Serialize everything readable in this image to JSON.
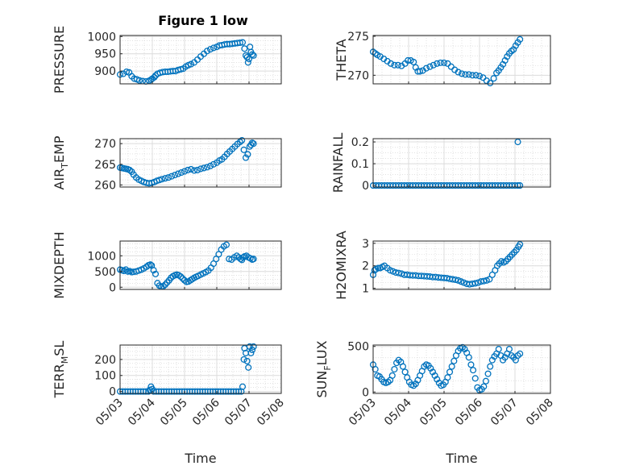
{
  "figure_title": "Figure 1 low",
  "colors": {
    "marker": "#0072BD",
    "axis": "#262626",
    "grid": "#dcdcdc",
    "minor_grid": "#cfcfcf"
  },
  "chart_data": [
    {
      "type": "scatter",
      "ylabel": "PRESSURE",
      "ylabel_parts": [
        "PRESSURE"
      ],
      "title": "Figure 1 low",
      "xlim": [
        0,
        5
      ],
      "ylim": [
        863,
        1003
      ],
      "yticks": [
        900,
        950,
        1000
      ],
      "ytick_labels": [
        "900",
        "950",
        "1000"
      ],
      "grid": true,
      "minor_grid": true,
      "x": [
        0.0,
        0.1,
        0.2,
        0.28,
        0.36,
        0.44,
        0.52,
        0.6,
        0.7,
        0.8,
        0.9,
        0.96,
        1.0,
        1.06,
        1.1,
        1.16,
        1.24,
        1.32,
        1.4,
        1.48,
        1.56,
        1.64,
        1.72,
        1.8,
        1.88,
        1.96,
        2.04,
        2.12,
        2.2,
        2.3,
        2.4,
        2.5,
        2.6,
        2.7,
        2.8,
        2.9,
        3.0,
        3.08,
        3.16,
        3.24,
        3.32,
        3.4,
        3.48,
        3.56,
        3.64,
        3.72,
        3.8,
        3.86,
        3.9,
        3.94,
        3.97,
        4.0,
        4.03,
        4.06,
        4.1,
        4.14
      ],
      "y": [
        890,
        892,
        898,
        896,
        885,
        878,
        876,
        873,
        871,
        870,
        872,
        875,
        878,
        882,
        887,
        892,
        895,
        897,
        898,
        898,
        899,
        900,
        900,
        903,
        905,
        907,
        913,
        917,
        920,
        925,
        933,
        942,
        950,
        958,
        963,
        967,
        970,
        974,
        975,
        977,
        978,
        978,
        979,
        980,
        981,
        982,
        983,
        965,
        945,
        940,
        925,
        935,
        970,
        955,
        948,
        945
      ]
    },
    {
      "type": "scatter",
      "ylabel": "THETA",
      "ylabel_parts": [
        "THETA"
      ],
      "xlim": [
        0,
        5
      ],
      "ylim": [
        268.9,
        275.1
      ],
      "yticks": [
        270,
        275
      ],
      "ytick_labels": [
        "270",
        "275"
      ],
      "grid": true,
      "minor_grid": true,
      "x": [
        0.0,
        0.06,
        0.12,
        0.2,
        0.3,
        0.4,
        0.5,
        0.6,
        0.7,
        0.8,
        0.9,
        0.98,
        1.06,
        1.14,
        1.2,
        1.26,
        1.32,
        1.4,
        1.5,
        1.6,
        1.7,
        1.8,
        1.9,
        2.0,
        2.1,
        2.2,
        2.3,
        2.4,
        2.5,
        2.6,
        2.7,
        2.8,
        2.9,
        3.0,
        3.1,
        3.2,
        3.3,
        3.4,
        3.48,
        3.54,
        3.6,
        3.66,
        3.72,
        3.78,
        3.84,
        3.9,
        3.96,
        4.02,
        4.08,
        4.14
      ],
      "y": [
        273.0,
        272.8,
        272.6,
        272.4,
        272.1,
        271.8,
        271.5,
        271.3,
        271.3,
        271.2,
        271.5,
        271.9,
        271.9,
        271.7,
        271.0,
        270.5,
        270.5,
        270.6,
        270.9,
        271.1,
        271.3,
        271.5,
        271.6,
        271.6,
        271.5,
        271.1,
        270.7,
        270.4,
        270.2,
        270.1,
        270.1,
        270.0,
        270.0,
        269.9,
        269.7,
        269.3,
        269.0,
        269.6,
        270.3,
        270.6,
        271.0,
        271.4,
        271.9,
        272.4,
        272.8,
        273.1,
        273.3,
        273.8,
        274.2,
        274.6
      ]
    },
    {
      "type": "scatter",
      "ylabel": "AIR_TEMP",
      "ylabel_parts": [
        "AIR",
        "T",
        "EMP"
      ],
      "xlim": [
        0,
        5
      ],
      "ylim": [
        259.5,
        271.2
      ],
      "yticks": [
        260,
        265,
        270
      ],
      "ytick_labels": [
        "260",
        "265",
        "270"
      ],
      "grid": true,
      "minor_grid": true,
      "x": [
        0.0,
        0.06,
        0.12,
        0.18,
        0.24,
        0.3,
        0.36,
        0.42,
        0.5,
        0.58,
        0.66,
        0.74,
        0.82,
        0.9,
        0.98,
        1.06,
        1.14,
        1.22,
        1.3,
        1.4,
        1.5,
        1.6,
        1.7,
        1.8,
        1.9,
        2.0,
        2.1,
        2.2,
        2.3,
        2.4,
        2.5,
        2.6,
        2.7,
        2.8,
        2.9,
        3.0,
        3.08,
        3.16,
        3.24,
        3.32,
        3.4,
        3.48,
        3.56,
        3.64,
        3.72,
        3.78,
        3.84,
        3.9,
        3.96,
        4.02,
        4.06,
        4.1,
        4.14
      ],
      "y": [
        264.2,
        264.1,
        264.0,
        263.9,
        263.8,
        263.6,
        263.2,
        262.5,
        261.8,
        261.3,
        261.0,
        260.7,
        260.5,
        260.4,
        260.5,
        260.7,
        261.0,
        261.2,
        261.4,
        261.6,
        261.8,
        262.1,
        262.4,
        262.7,
        263.0,
        263.3,
        263.6,
        263.8,
        263.5,
        263.6,
        263.9,
        264.1,
        264.3,
        264.6,
        265.0,
        265.4,
        265.9,
        266.2,
        266.8,
        267.5,
        268.1,
        268.7,
        269.3,
        269.9,
        270.4,
        270.8,
        268.5,
        266.6,
        267.4,
        269.3,
        269.7,
        270.2,
        270.0
      ]
    },
    {
      "type": "scatter",
      "ylabel": "RAINFALL",
      "ylabel_parts": [
        "RAINFALL"
      ],
      "xlim": [
        0,
        5
      ],
      "ylim": [
        -0.007,
        0.215
      ],
      "yticks": [
        0,
        0.1,
        0.2
      ],
      "ytick_labels": [
        "0",
        "0.1",
        "0.2"
      ],
      "grid": true,
      "minor_grid": true,
      "x": [
        0.0,
        0.08,
        0.16,
        0.24,
        0.32,
        0.4,
        0.48,
        0.56,
        0.64,
        0.72,
        0.8,
        0.88,
        0.96,
        1.04,
        1.12,
        1.2,
        1.28,
        1.36,
        1.44,
        1.52,
        1.6,
        1.68,
        1.76,
        1.84,
        1.92,
        2.0,
        2.08,
        2.16,
        2.24,
        2.32,
        2.4,
        2.48,
        2.56,
        2.64,
        2.72,
        2.8,
        2.88,
        2.96,
        3.04,
        3.12,
        3.2,
        3.28,
        3.36,
        3.44,
        3.52,
        3.6,
        3.68,
        3.76,
        3.84,
        3.92,
        4.0,
        4.08,
        4.14,
        4.08
      ],
      "y": [
        0,
        0,
        0,
        0,
        0,
        0,
        0,
        0,
        0,
        0,
        0,
        0,
        0,
        0,
        0,
        0,
        0,
        0,
        0,
        0,
        0,
        0,
        0,
        0,
        0,
        0,
        0,
        0,
        0,
        0,
        0,
        0,
        0,
        0,
        0,
        0,
        0,
        0,
        0,
        0,
        0,
        0,
        0,
        0,
        0,
        0,
        0,
        0,
        0,
        0,
        0,
        0,
        0,
        0.2
      ]
    },
    {
      "type": "scatter",
      "ylabel": "MIXDEPTH",
      "ylabel_parts": [
        "MIXDEPTH"
      ],
      "xlim": [
        0,
        5
      ],
      "ylim": [
        -70,
        1470
      ],
      "yticks": [
        0,
        500,
        1000
      ],
      "ytick_labels": [
        "0",
        "500",
        "1000"
      ],
      "grid": true,
      "minor_grid": true,
      "x": [
        0.0,
        0.06,
        0.12,
        0.18,
        0.24,
        0.3,
        0.36,
        0.42,
        0.5,
        0.58,
        0.66,
        0.74,
        0.82,
        0.88,
        0.94,
        0.98,
        1.04,
        1.1,
        1.16,
        1.22,
        1.28,
        1.34,
        1.4,
        1.46,
        1.52,
        1.58,
        1.64,
        1.7,
        1.76,
        1.82,
        1.88,
        1.94,
        2.0,
        2.06,
        2.12,
        2.18,
        2.24,
        2.3,
        2.36,
        2.42,
        2.5,
        2.58,
        2.66,
        2.74,
        2.82,
        2.9,
        2.98,
        3.06,
        3.14,
        3.22,
        3.3,
        3.38,
        3.46,
        3.54,
        3.62,
        3.68,
        3.74,
        3.78,
        3.82,
        3.86,
        3.92,
        3.98,
        4.04,
        4.1,
        4.14
      ],
      "y": [
        560,
        540,
        520,
        560,
        500,
        510,
        480,
        490,
        500,
        530,
        560,
        600,
        650,
        700,
        720,
        690,
        540,
        420,
        130,
        50,
        20,
        30,
        80,
        150,
        220,
        300,
        350,
        380,
        400,
        380,
        340,
        280,
        220,
        170,
        180,
        220,
        260,
        300,
        330,
        360,
        400,
        440,
        480,
        530,
        620,
        750,
        900,
        1050,
        1200,
        1300,
        1350,
        900,
        880,
        950,
        1000,
        950,
        900,
        870,
        950,
        980,
        1000,
        950,
        920,
        880,
        900
      ]
    },
    {
      "type": "scatter",
      "ylabel": "H2OMIXRA",
      "ylabel_parts": [
        "H2OMIXRA"
      ],
      "xlim": [
        0,
        5
      ],
      "ylim": [
        0.95,
        3.1
      ],
      "yticks": [
        1,
        2,
        3
      ],
      "ytick_labels": [
        "1",
        "2",
        "3"
      ],
      "grid": true,
      "minor_grid": true,
      "x": [
        0.0,
        0.04,
        0.08,
        0.14,
        0.2,
        0.26,
        0.32,
        0.4,
        0.48,
        0.56,
        0.64,
        0.72,
        0.8,
        0.88,
        0.96,
        1.04,
        1.12,
        1.2,
        1.28,
        1.36,
        1.44,
        1.52,
        1.6,
        1.68,
        1.76,
        1.84,
        1.92,
        2.0,
        2.08,
        2.16,
        2.24,
        2.32,
        2.4,
        2.48,
        2.56,
        2.64,
        2.72,
        2.8,
        2.88,
        2.96,
        3.04,
        3.12,
        3.2,
        3.28,
        3.36,
        3.44,
        3.5,
        3.56,
        3.62,
        3.68,
        3.74,
        3.8,
        3.86,
        3.92,
        3.98,
        4.04,
        4.1,
        4.14
      ],
      "y": [
        1.6,
        1.8,
        1.85,
        1.9,
        1.9,
        1.95,
        2.0,
        1.9,
        1.8,
        1.75,
        1.7,
        1.68,
        1.65,
        1.6,
        1.6,
        1.58,
        1.57,
        1.57,
        1.55,
        1.55,
        1.54,
        1.53,
        1.52,
        1.5,
        1.5,
        1.48,
        1.47,
        1.46,
        1.45,
        1.42,
        1.4,
        1.38,
        1.35,
        1.3,
        1.25,
        1.2,
        1.18,
        1.2,
        1.22,
        1.25,
        1.3,
        1.32,
        1.35,
        1.4,
        1.6,
        1.8,
        2.0,
        2.1,
        2.2,
        2.15,
        2.2,
        2.3,
        2.4,
        2.5,
        2.6,
        2.7,
        2.85,
        2.95
      ]
    },
    {
      "type": "scatter",
      "ylabel": "TERR_MSL",
      "ylabel_parts": [
        "TERR",
        "M",
        "SL"
      ],
      "xlim": [
        0,
        5
      ],
      "ylim": [
        -12,
        290
      ],
      "yticks": [
        0,
        100,
        200
      ],
      "ytick_labels": [
        "0",
        "100",
        "200"
      ],
      "grid": true,
      "minor_grid": true,
      "x": [
        0.0,
        0.08,
        0.16,
        0.24,
        0.32,
        0.4,
        0.48,
        0.56,
        0.64,
        0.72,
        0.8,
        0.88,
        0.92,
        0.96,
        1.0,
        1.04,
        1.12,
        1.2,
        1.28,
        1.36,
        1.44,
        1.52,
        1.6,
        1.68,
        1.76,
        1.84,
        1.92,
        2.0,
        2.08,
        2.16,
        2.24,
        2.32,
        2.4,
        2.48,
        2.56,
        2.64,
        2.72,
        2.8,
        2.88,
        2.96,
        3.04,
        3.12,
        3.2,
        3.28,
        3.36,
        3.44,
        3.52,
        3.6,
        3.68,
        3.76,
        3.8,
        3.84,
        3.86,
        3.9,
        3.94,
        3.98,
        4.02,
        4.06,
        4.1,
        4.14
      ],
      "y": [
        0,
        0,
        0,
        0,
        0,
        0,
        0,
        0,
        0,
        0,
        0,
        0,
        10,
        30,
        15,
        0,
        0,
        0,
        0,
        0,
        0,
        0,
        0,
        0,
        0,
        0,
        0,
        0,
        0,
        0,
        0,
        0,
        0,
        0,
        0,
        0,
        0,
        0,
        0,
        0,
        0,
        0,
        0,
        0,
        0,
        0,
        0,
        0,
        0,
        0,
        30,
        200,
        270,
        240,
        190,
        150,
        280,
        240,
        260,
        280
      ]
    },
    {
      "type": "scatter",
      "ylabel": "SUN_FLUX",
      "ylabel_parts": [
        "SUN",
        "F",
        "LUX"
      ],
      "xlim": [
        0,
        5
      ],
      "ylim": [
        -15,
        515
      ],
      "yticks": [
        0,
        500
      ],
      "ytick_labels": [
        "0",
        "500"
      ],
      "grid": true,
      "minor_grid": true,
      "x": [
        0.0,
        0.06,
        0.12,
        0.18,
        0.24,
        0.3,
        0.36,
        0.42,
        0.48,
        0.54,
        0.6,
        0.66,
        0.72,
        0.78,
        0.84,
        0.9,
        0.96,
        1.02,
        1.08,
        1.14,
        1.2,
        1.26,
        1.32,
        1.38,
        1.44,
        1.5,
        1.56,
        1.62,
        1.68,
        1.74,
        1.8,
        1.86,
        1.92,
        1.98,
        2.04,
        2.1,
        2.16,
        2.22,
        2.28,
        2.34,
        2.4,
        2.46,
        2.52,
        2.58,
        2.64,
        2.7,
        2.76,
        2.82,
        2.88,
        2.94,
        3.0,
        3.06,
        3.12,
        3.18,
        3.24,
        3.3,
        3.36,
        3.42,
        3.48,
        3.54,
        3.6,
        3.66,
        3.72,
        3.78,
        3.84,
        3.9,
        3.96,
        4.02,
        4.08,
        4.14
      ],
      "y": [
        300,
        250,
        180,
        170,
        140,
        110,
        100,
        110,
        130,
        180,
        250,
        320,
        350,
        330,
        280,
        220,
        160,
        110,
        80,
        70,
        90,
        130,
        180,
        230,
        280,
        300,
        290,
        260,
        220,
        180,
        140,
        100,
        70,
        80,
        110,
        160,
        220,
        280,
        340,
        400,
        450,
        480,
        490,
        470,
        430,
        380,
        300,
        240,
        150,
        50,
        20,
        30,
        60,
        120,
        200,
        280,
        350,
        390,
        420,
        470,
        400,
        350,
        380,
        420,
        470,
        400,
        380,
        350,
        400,
        420
      ]
    }
  ],
  "xaxis": {
    "tick_labels": [
      "05/03",
      "05/04",
      "05/05",
      "05/06",
      "05/07",
      "05/08"
    ],
    "tick_values": [
      "05/03",
      "05/04",
      "05/05",
      "05/06",
      "05/07",
      "05/08"
    ],
    "label": "Time"
  }
}
